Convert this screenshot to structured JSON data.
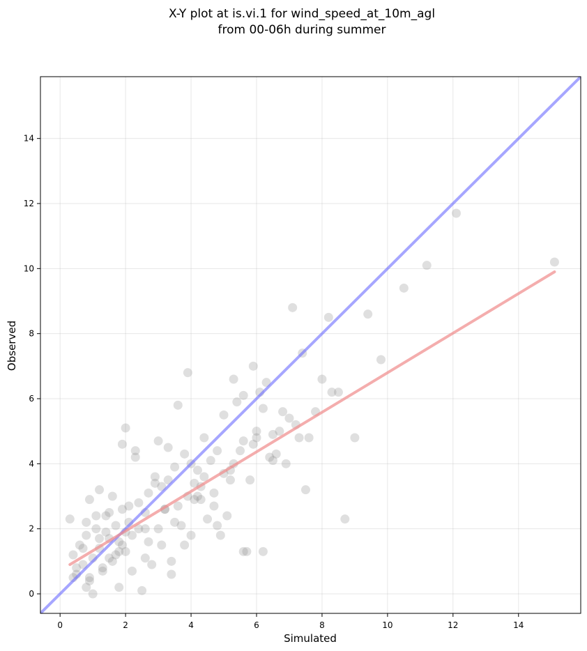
{
  "chart_data": {
    "type": "scatter",
    "title_lines": [
      "X-Y plot at is.vi.1 for wind_speed_at_10m_agl",
      "from 00-06h during summer"
    ],
    "xlabel": "Simulated",
    "ylabel": "Observed",
    "xlim": [
      -0.6,
      15.9
    ],
    "ylim": [
      -0.6,
      15.9
    ],
    "xticks": [
      0,
      2,
      4,
      6,
      8,
      10,
      12,
      14
    ],
    "yticks": [
      0,
      2,
      4,
      6,
      8,
      10,
      12,
      14
    ],
    "grid": true,
    "colors": {
      "points": "#808080",
      "identity_line": "#6b6bff",
      "fit_line": "#f08a8a"
    },
    "series": [
      {
        "kind": "points",
        "x": [
          0.3,
          0.4,
          0.5,
          0.6,
          0.7,
          0.8,
          0.9,
          1.0,
          1.1,
          1.2,
          1.3,
          1.4,
          1.5,
          1.6,
          1.7,
          1.8,
          1.9,
          2.0,
          0.9,
          1.2,
          1.5,
          1.8,
          2.1,
          2.4,
          2.7,
          3.0,
          3.3,
          3.6,
          3.9,
          4.2,
          0.8,
          1.3,
          1.7,
          2.2,
          2.6,
          3.1,
          3.5,
          4.0,
          4.4,
          4.8,
          5.2,
          5.6,
          6.0,
          6.4,
          6.8,
          7.2,
          2.0,
          2.3,
          2.6,
          2.9,
          3.2,
          3.5,
          3.8,
          4.1,
          4.4,
          4.7,
          5.0,
          5.3,
          5.6,
          5.9,
          6.2,
          6.5,
          1.0,
          1.1,
          1.6,
          1.9,
          2.1,
          2.8,
          3.3,
          3.7,
          4.3,
          4.6,
          5.1,
          5.4,
          5.8,
          6.1,
          6.6,
          7.0,
          0.7,
          0.9,
          1.4,
          2.5,
          2.7,
          3.0,
          3.4,
          3.9,
          4.5,
          5.0,
          5.5,
          6.3,
          6.9,
          7.4,
          7.8,
          8.2,
          1.9,
          2.2,
          2.4,
          3.6,
          4.0,
          4.2,
          4.9,
          5.3,
          5.7,
          6.0,
          6.7,
          7.1,
          7.6,
          8.0,
          8.5,
          9.0,
          0.5,
          1.2,
          1.8,
          2.3,
          2.9,
          3.2,
          3.8,
          4.1,
          4.7,
          5.2,
          5.9,
          6.5,
          7.3,
          8.7,
          9.4,
          10.5,
          0.4,
          0.8,
          1.5,
          2.0,
          2.6,
          3.1,
          3.4,
          4.3,
          4.8,
          5.6,
          6.2,
          7.5,
          8.3,
          9.8,
          11.2,
          12.1,
          15.1
        ],
        "y": [
          2.3,
          1.2,
          0.6,
          1.5,
          0.9,
          1.8,
          0.5,
          1.1,
          2.0,
          1.4,
          0.8,
          2.4,
          1.7,
          1.0,
          2.1,
          1.3,
          2.6,
          1.9,
          2.9,
          3.2,
          2.5,
          1.6,
          2.2,
          2.8,
          3.1,
          2.0,
          3.5,
          2.7,
          3.0,
          3.8,
          0.2,
          0.7,
          1.2,
          1.8,
          2.5,
          3.3,
          2.2,
          4.0,
          3.6,
          4.4,
          3.8,
          4.7,
          5.0,
          4.2,
          5.6,
          5.2,
          5.1,
          4.2,
          1.1,
          3.4,
          2.6,
          3.9,
          4.3,
          2.9,
          4.8,
          3.1,
          5.5,
          4.0,
          6.1,
          4.6,
          5.7,
          4.9,
          0.0,
          2.4,
          3.0,
          1.5,
          2.7,
          0.9,
          4.5,
          2.1,
          3.3,
          4.1,
          2.4,
          5.9,
          3.5,
          6.2,
          4.3,
          5.4,
          1.4,
          0.4,
          1.9,
          0.1,
          1.6,
          4.7,
          1.0,
          6.8,
          2.3,
          3.7,
          4.4,
          6.5,
          4.0,
          7.4,
          5.6,
          8.5,
          4.6,
          0.7,
          2.0,
          5.8,
          1.8,
          3.0,
          1.8,
          6.6,
          1.3,
          4.8,
          5.0,
          8.8,
          4.8,
          6.6,
          6.2,
          4.8,
          0.8,
          1.7,
          0.2,
          4.4,
          3.6,
          2.6,
          1.5,
          3.4,
          2.7,
          3.5,
          7.0,
          4.1,
          4.8,
          2.3,
          8.6,
          9.4,
          0.5,
          2.2,
          1.1,
          1.3,
          2.0,
          1.5,
          0.6,
          2.9,
          2.1,
          1.3,
          1.3,
          3.2,
          6.2,
          7.2,
          10.1,
          11.7,
          10.2
        ]
      },
      {
        "kind": "line",
        "name": "",
        "x": [
          -0.6,
          15.9
        ],
        "y": [
          -0.6,
          15.9
        ]
      },
      {
        "kind": "line",
        "name": "",
        "x": [
          0.3,
          15.1
        ],
        "y": [
          0.9,
          9.9
        ]
      }
    ]
  }
}
